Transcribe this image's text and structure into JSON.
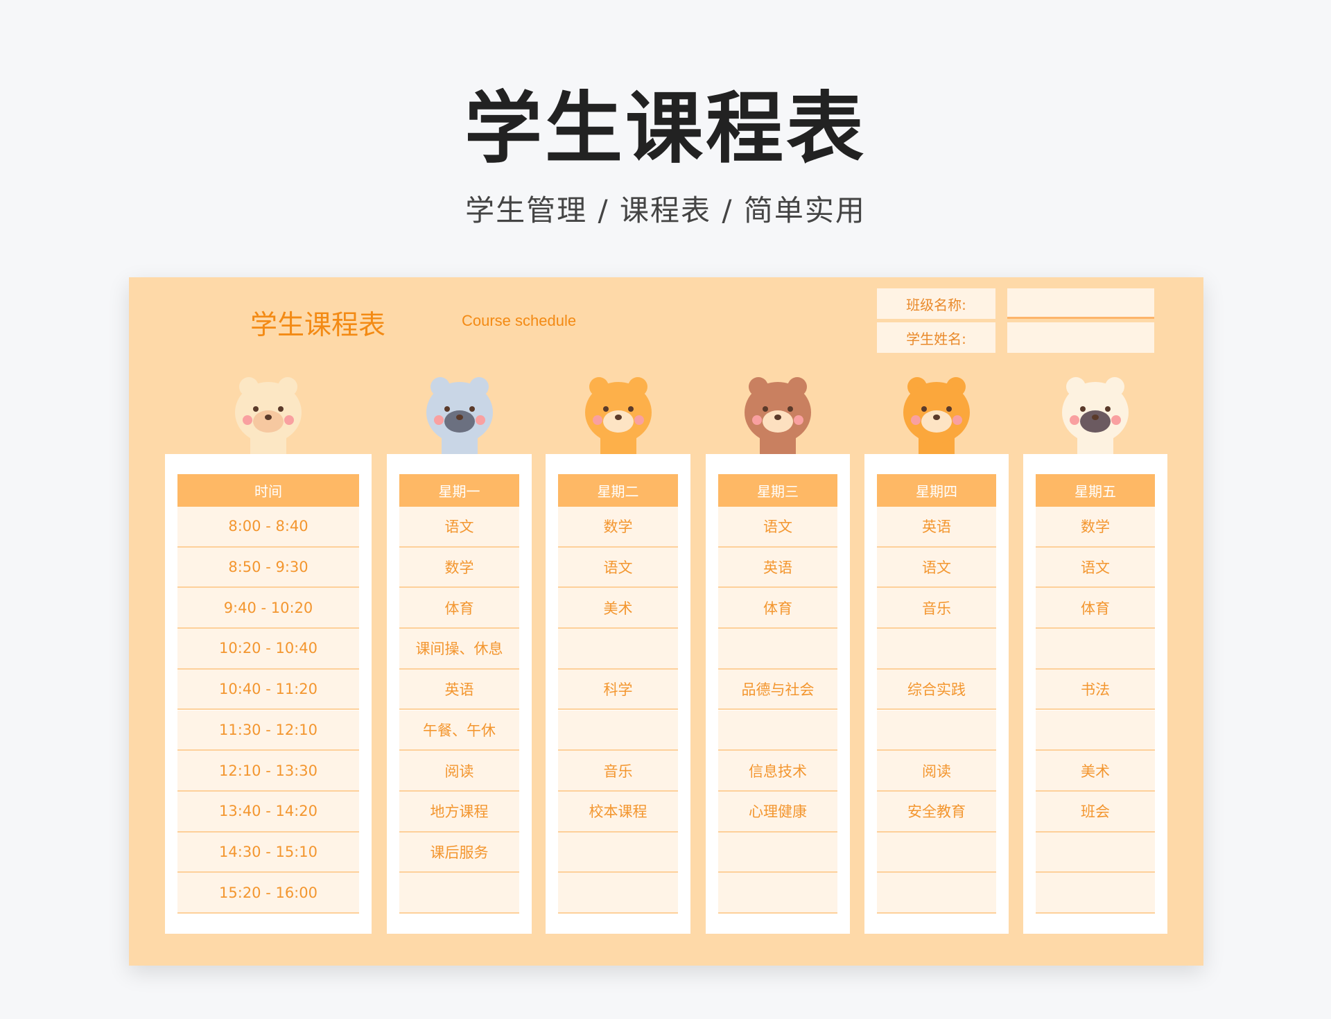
{
  "header": {
    "title": "学生课程表",
    "subtitle": "学生管理  /  课程表 /  简单实用"
  },
  "card": {
    "title": "学生课程表",
    "subtitle": "Course schedule",
    "class_label": "班级名称:",
    "class_value": "",
    "student_label": "学生姓名:",
    "student_value": ""
  },
  "colors": {
    "card_bg": "#fed9a8",
    "header_bg": "#feb865",
    "text": "#f3962f"
  },
  "columns": [
    {
      "header": "时间",
      "animal": "bear",
      "cells": [
        "8:00 - 8:40",
        "8:50 - 9:30",
        "9:40 - 10:20",
        "10:20 - 10:40",
        "10:40 - 11:20",
        "11:30 - 12:10",
        "12:10 - 13:30",
        "13:40 - 14:20",
        "14:30 - 15:10",
        "15:20 - 16:00"
      ]
    },
    {
      "header": "星期一",
      "animal": "raccoon",
      "cells": [
        "语文",
        "数学",
        "体育",
        "课间操、休息",
        "英语",
        "午餐、午休",
        "阅读",
        "地方课程",
        "课后服务",
        ""
      ]
    },
    {
      "header": "星期二",
      "animal": "fox",
      "cells": [
        "数学",
        "语文",
        "美术",
        "",
        "科学",
        "",
        "音乐",
        "校本课程",
        "",
        ""
      ]
    },
    {
      "header": "星期三",
      "animal": "monkey",
      "cells": [
        "语文",
        "英语",
        "体育",
        "",
        "品德与社会",
        "",
        "信息技术",
        "心理健康",
        "",
        ""
      ]
    },
    {
      "header": "星期四",
      "animal": "tiger",
      "cells": [
        "英语",
        "语文",
        "音乐",
        "",
        "综合实践",
        "",
        "阅读",
        "安全教育",
        "",
        ""
      ]
    },
    {
      "header": "星期五",
      "animal": "cow",
      "cells": [
        "数学",
        "语文",
        "体育",
        "",
        "书法",
        "",
        "美术",
        "班会",
        "",
        ""
      ]
    }
  ]
}
